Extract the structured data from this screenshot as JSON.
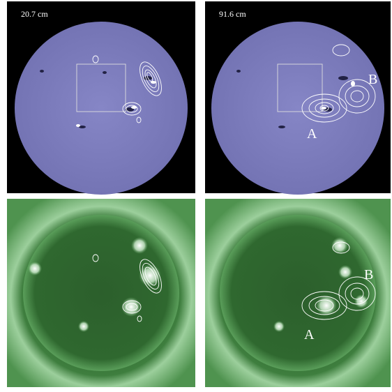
{
  "panels": {
    "top_left": {
      "wavelength": "20.7 cm"
    },
    "top_right": {
      "wavelength": "91.6 cm",
      "source_a": "A",
      "source_b": "B"
    },
    "bottom_right": {
      "source_a": "A",
      "source_b": "B"
    }
  }
}
